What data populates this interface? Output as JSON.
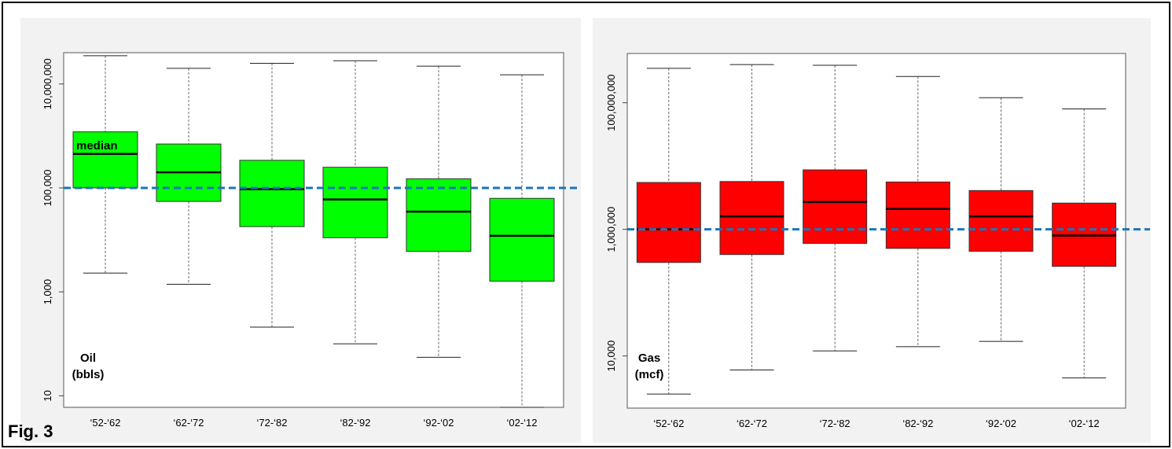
{
  "figure_label": "Fig. 3",
  "chart_data": [
    {
      "type": "boxplot",
      "scale": "log",
      "ylim": [
        6,
        40000000
      ],
      "categories": [
        "‘52-‘62",
        "‘62-‘72",
        "‘72-‘82",
        "‘82-‘92",
        "‘92-‘02",
        "‘02-‘12"
      ],
      "yticks": [
        10,
        1000,
        100000,
        10000000
      ],
      "ytick_labels": [
        "10",
        "1,000",
        "100,000",
        "10,000,000"
      ],
      "series": [
        {
          "color": "#00ff00",
          "boxes": [
            {
              "whisker_low": 2300,
              "q1": 100000,
              "median": 450000,
              "q3": 1200000,
              "whisker_high": 35000000
            },
            {
              "whisker_low": 1400,
              "q1": 55000,
              "median": 200000,
              "q3": 700000,
              "whisker_high": 20000000
            },
            {
              "whisker_low": 210,
              "q1": 18000,
              "median": 95000,
              "q3": 340000,
              "whisker_high": 25000000
            },
            {
              "whisker_low": 100,
              "q1": 11000,
              "median": 60000,
              "q3": 250000,
              "whisker_high": 28000000
            },
            {
              "whisker_low": 55,
              "q1": 6000,
              "median": 35000,
              "q3": 150000,
              "whisker_high": 22000000
            },
            {
              "whisker_low": 6,
              "q1": 1600,
              "median": 12000,
              "q3": 63000,
              "whisker_high": 15000000
            }
          ]
        }
      ],
      "reference_line": {
        "value": 100000,
        "color": "#1a75bc",
        "style": "dashed"
      },
      "annotations": [
        {
          "text": "median"
        }
      ],
      "quantity_label": {
        "line1": "Oil",
        "line2": "(bbls)"
      },
      "grid": false
    },
    {
      "type": "boxplot",
      "scale": "log",
      "ylim": [
        1500,
        600000000
      ],
      "categories": [
        "‘52-‘62",
        "‘62-‘72",
        "‘72-‘82",
        "‘82-‘92",
        "‘92-‘02",
        "‘02-‘12"
      ],
      "yticks": [
        10000,
        1000000,
        100000000
      ],
      "ytick_labels": [
        "10,000",
        "1,000,000",
        "100,000,000"
      ],
      "series": [
        {
          "color": "#ff0000",
          "boxes": [
            {
              "whisker_low": 2500,
              "q1": 300000,
              "median": 1000000,
              "q3": 5500000,
              "whisker_high": 350000000
            },
            {
              "whisker_low": 6000,
              "q1": 400000,
              "median": 1600000,
              "q3": 5700000,
              "whisker_high": 400000000
            },
            {
              "whisker_low": 12000,
              "q1": 600000,
              "median": 2700000,
              "q3": 8700000,
              "whisker_high": 390000000
            },
            {
              "whisker_low": 14000,
              "q1": 500000,
              "median": 2100000,
              "q3": 5600000,
              "whisker_high": 260000000
            },
            {
              "whisker_low": 17000,
              "q1": 450000,
              "median": 1600000,
              "q3": 4100000,
              "whisker_high": 120000000
            },
            {
              "whisker_low": 4500,
              "q1": 260000,
              "median": 800000,
              "q3": 2600000,
              "whisker_high": 80000000
            }
          ]
        }
      ],
      "reference_line": {
        "value": 1000000,
        "color": "#1a75bc",
        "style": "dashed"
      },
      "quantity_label": {
        "line1": "Gas",
        "line2": "(mcf)"
      },
      "grid": false
    }
  ]
}
